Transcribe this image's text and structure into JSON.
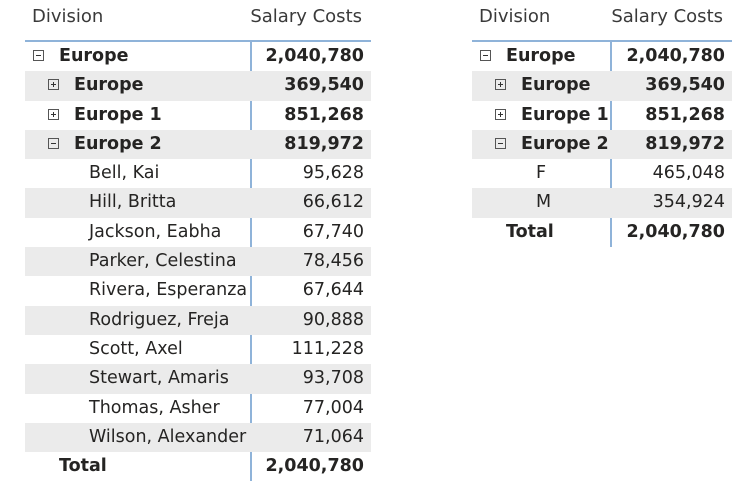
{
  "left_matrix": {
    "headers": {
      "division": "Division",
      "salary": "Salary Costs"
    },
    "rows": [
      {
        "label": "Europe",
        "value": "2,040,780"
      },
      {
        "label": "Europe",
        "value": "369,540"
      },
      {
        "label": "Europe 1",
        "value": "851,268"
      },
      {
        "label": "Europe 2",
        "value": "819,972"
      },
      {
        "label": "Bell, Kai",
        "value": "95,628"
      },
      {
        "label": "Hill, Britta",
        "value": "66,612"
      },
      {
        "label": "Jackson, Eabha",
        "value": "67,740"
      },
      {
        "label": "Parker, Celestina",
        "value": "78,456"
      },
      {
        "label": "Rivera, Esperanza",
        "value": "67,644"
      },
      {
        "label": "Rodriguez, Freja",
        "value": "90,888"
      },
      {
        "label": "Scott, Axel",
        "value": "111,228"
      },
      {
        "label": "Stewart, Amaris",
        "value": "93,708"
      },
      {
        "label": "Thomas, Asher",
        "value": "77,004"
      },
      {
        "label": "Wilson, Alexander",
        "value": "71,064"
      }
    ],
    "total": {
      "label": "Total",
      "value": "2,040,780"
    }
  },
  "right_matrix": {
    "headers": {
      "division": "Division",
      "salary": "Salary Costs"
    },
    "rows": [
      {
        "label": "Europe",
        "value": "2,040,780"
      },
      {
        "label": "Europe",
        "value": "369,540"
      },
      {
        "label": "Europe 1",
        "value": "851,268"
      },
      {
        "label": "Europe 2",
        "value": "819,972"
      },
      {
        "label": "F",
        "value": "465,048"
      },
      {
        "label": "M",
        "value": "354,924"
      }
    ],
    "total": {
      "label": "Total",
      "value": "2,040,780"
    }
  }
}
